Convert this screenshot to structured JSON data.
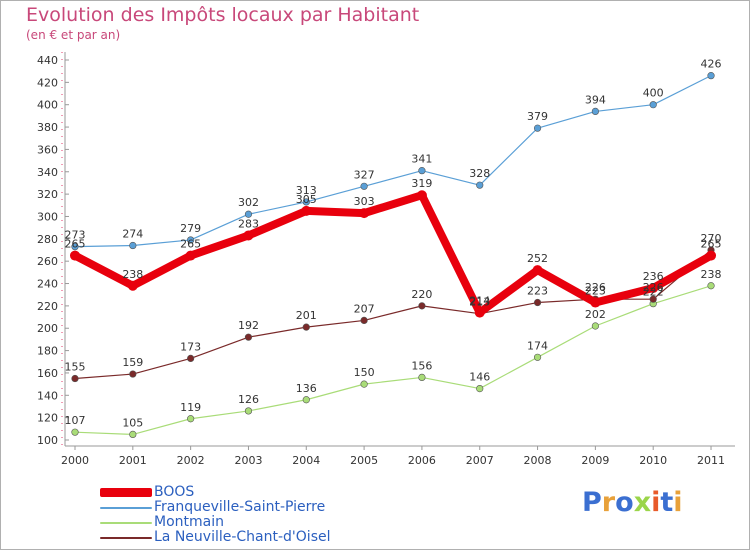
{
  "title": "Evolution des Impôts locaux par Habitant",
  "subtitle": "(en € et par an)",
  "brand": {
    "text": "Proxiti",
    "colors": [
      "#3b6fd1",
      "#e8a13a",
      "#3b6fd1",
      "#9bd54a",
      "#e85a2a",
      "#3b6fd1",
      "#e8a13a"
    ]
  },
  "chart_data": {
    "type": "line",
    "x": [
      "2000",
      "2001",
      "2002",
      "2003",
      "2004",
      "2005",
      "2006",
      "2007",
      "2008",
      "2009",
      "2010",
      "2011"
    ],
    "ylim": [
      100,
      440
    ],
    "yticks": [
      100,
      120,
      140,
      160,
      180,
      200,
      220,
      240,
      260,
      280,
      300,
      320,
      340,
      360,
      380,
      400,
      420,
      440
    ],
    "grid": false,
    "legend_position": "bottom-left",
    "series": [
      {
        "name": "BOOS",
        "color": "#e8000d",
        "emphasis": true,
        "values": [
          265,
          238,
          265,
          283,
          305,
          303,
          319,
          214,
          252,
          223,
          236,
          265
        ]
      },
      {
        "name": "Franqueville-Saint-Pierre",
        "color": "#5a9fd6",
        "values": [
          273,
          274,
          279,
          302,
          313,
          327,
          341,
          328,
          379,
          394,
          400,
          426
        ]
      },
      {
        "name": "Montmain",
        "color": "#a9dc78",
        "values": [
          107,
          105,
          119,
          126,
          136,
          150,
          156,
          146,
          174,
          202,
          222,
          238
        ]
      },
      {
        "name": "La Neuville-Chant-d'Oisel",
        "color": "#7a2a2a",
        "values": [
          155,
          159,
          173,
          192,
          201,
          207,
          220,
          213,
          223,
          226,
          226,
          270
        ]
      }
    ]
  }
}
